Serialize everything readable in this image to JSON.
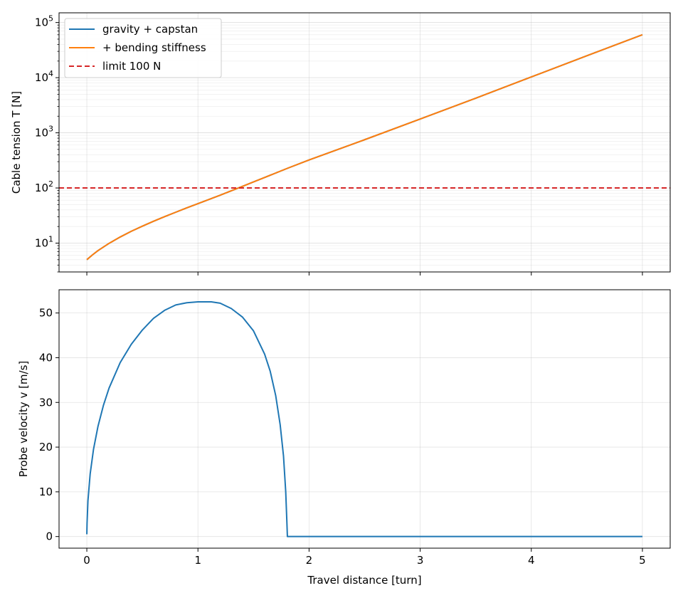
{
  "chart_data": [
    {
      "type": "line",
      "ylabel": "Cable tension T [N]",
      "xlabel": "",
      "xlim": [
        -0.25,
        5.25
      ],
      "ylim": [
        3,
        150000
      ],
      "yscale": "log",
      "grid": true,
      "legend_position": "top-left",
      "x_ticks": [
        0,
        1,
        2,
        3,
        4,
        5
      ],
      "y_ticks": [
        {
          "value": 10,
          "base": "10",
          "exp": "1"
        },
        {
          "value": 100,
          "base": "10",
          "exp": "2"
        },
        {
          "value": 1000,
          "base": "10",
          "exp": "3"
        },
        {
          "value": 10000,
          "base": "10",
          "exp": "4"
        },
        {
          "value": 100000,
          "base": "10",
          "exp": "5"
        }
      ],
      "series": [
        {
          "name": "gravity + capstan",
          "color": "#1f77b4",
          "style": "solid",
          "x": [
            0,
            0.05,
            0.1,
            0.2,
            0.3,
            0.4,
            0.5,
            0.6,
            0.7,
            0.8,
            0.9,
            1.0,
            1.2,
            1.4,
            1.6,
            1.8,
            2.0,
            2.5,
            3.0,
            3.5,
            4.0,
            4.5,
            5.0
          ],
          "y": [
            5,
            6.1,
            7.3,
            9.9,
            12.9,
            16.4,
            20.3,
            24.9,
            30.2,
            36.3,
            43.6,
            52,
            74,
            107,
            155,
            225,
            322,
            750,
            1780,
            4250,
            10300,
            25000,
            60000
          ]
        },
        {
          "name": "+ bending stiffness",
          "color": "#ff7f0e",
          "style": "solid",
          "x": [
            0,
            0.05,
            0.1,
            0.2,
            0.3,
            0.4,
            0.5,
            0.6,
            0.7,
            0.8,
            0.9,
            1.0,
            1.2,
            1.4,
            1.6,
            1.8,
            2.0,
            2.5,
            3.0,
            3.5,
            4.0,
            4.5,
            5.0
          ],
          "y": [
            5,
            6.1,
            7.3,
            9.9,
            12.9,
            16.4,
            20.3,
            24.9,
            30.2,
            36.3,
            43.6,
            52,
            74,
            107,
            155,
            225,
            322,
            750,
            1780,
            4250,
            10300,
            25000,
            60000
          ]
        },
        {
          "name": "limit 100 N",
          "color": "#d62728",
          "style": "dashed",
          "y_constant": 100
        }
      ]
    },
    {
      "type": "line",
      "ylabel": "Probe velocity v [m/s]",
      "xlabel": "Travel distance [turn]",
      "xlim": [
        -0.25,
        5.25
      ],
      "ylim": [
        -2.6,
        55.2
      ],
      "yscale": "linear",
      "grid": true,
      "x_ticks": [
        0,
        1,
        2,
        3,
        4,
        5
      ],
      "y_ticks": [
        0,
        10,
        20,
        30,
        40,
        50
      ],
      "series": [
        {
          "name": "",
          "color": "#1f77b4",
          "style": "solid",
          "x": [
            0,
            0.002,
            0.01,
            0.03,
            0.06,
            0.1,
            0.15,
            0.2,
            0.3,
            0.4,
            0.5,
            0.6,
            0.7,
            0.8,
            0.9,
            1.0,
            1.12,
            1.2,
            1.3,
            1.4,
            1.5,
            1.6,
            1.65,
            1.7,
            1.74,
            1.77,
            1.79,
            1.8,
            1.805,
            2.0,
            3.0,
            4.0,
            5.0
          ],
          "y": [
            0.5,
            3.0,
            8.0,
            14.0,
            19.5,
            24.6,
            29.4,
            33.2,
            38.9,
            43.0,
            46.2,
            48.8,
            50.6,
            51.8,
            52.3,
            52.5,
            52.5,
            52.2,
            51.0,
            49.1,
            46.0,
            40.8,
            37.0,
            31.5,
            25.0,
            18.0,
            10.0,
            3.5,
            0.0,
            0.0,
            0.0,
            0.0,
            0.0
          ]
        }
      ]
    }
  ]
}
